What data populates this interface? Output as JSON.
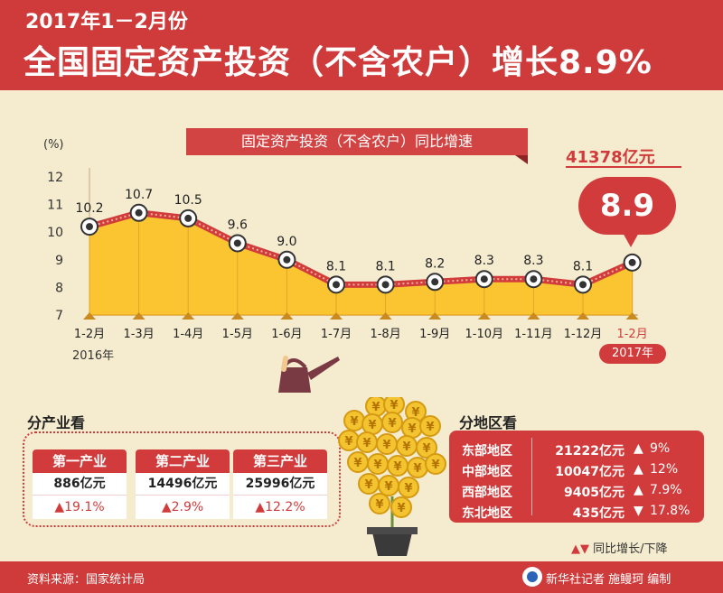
{
  "header": {
    "line1": "2017年1－2月份",
    "line2": "全国固定资产投资（不含农户）增长8.9%"
  },
  "chart_banner": "固定资产投资（不含农户）同比增速",
  "total_amount": "41378亿元",
  "callout_value": "8.9",
  "year_labels": {
    "y2016": "2016年",
    "y2017": "2017年"
  },
  "chart_data": {
    "type": "area",
    "ylabel": "(%)",
    "ylim": [
      7,
      12
    ],
    "yticks": [
      7,
      8,
      9,
      10,
      11,
      12
    ],
    "categories": [
      "1-2月",
      "1-3月",
      "1-4月",
      "1-5月",
      "1-6月",
      "1-7月",
      "1-8月",
      "1-9月",
      "1-10月",
      "1-11月",
      "1-12月",
      "1-2月"
    ],
    "values": [
      10.2,
      10.7,
      10.5,
      9.6,
      9.0,
      8.1,
      8.1,
      8.2,
      8.3,
      8.3,
      8.1,
      8.9
    ],
    "value_labels": [
      "10.2",
      "10.7",
      "10.5",
      "9.6",
      "9.0",
      "8.1",
      "8.1",
      "8.2",
      "8.3",
      "8.3",
      "8.1",
      ""
    ],
    "colors": {
      "fill": "#fbc531",
      "line": "#d23b3b",
      "highlight_label": "#d23b3b"
    }
  },
  "industry": {
    "title": "分产业看",
    "items": [
      {
        "name": "第一产业",
        "value": "886亿元",
        "growth": "19.1%"
      },
      {
        "name": "第二产业",
        "value": "14496亿元",
        "growth": "2.9%"
      },
      {
        "name": "第三产业",
        "value": "25996亿元",
        "growth": "12.2%"
      }
    ]
  },
  "region": {
    "title": "分地区看",
    "rows": [
      {
        "name": "东部地区",
        "value": "21222亿元",
        "arrow": "▲",
        "growth": "9%"
      },
      {
        "name": "中部地区",
        "value": "10047亿元",
        "arrow": "▲",
        "growth": "12%"
      },
      {
        "name": "西部地区",
        "value": "9405亿元",
        "arrow": "▲",
        "growth": "7.9%"
      },
      {
        "name": "东北地区",
        "value": "435亿元",
        "arrow": "▼",
        "growth": "17.8%"
      }
    ]
  },
  "legend": {
    "arrows": "▲▼",
    "text": "同比增长/下降"
  },
  "footer": {
    "source": "资料来源：国家统计局",
    "credit": "新华社记者 施鳗珂 编制"
  },
  "colors": {
    "brand_red": "#cf3b3b",
    "gold": "#fbc531",
    "background": "#f5ecd0"
  }
}
